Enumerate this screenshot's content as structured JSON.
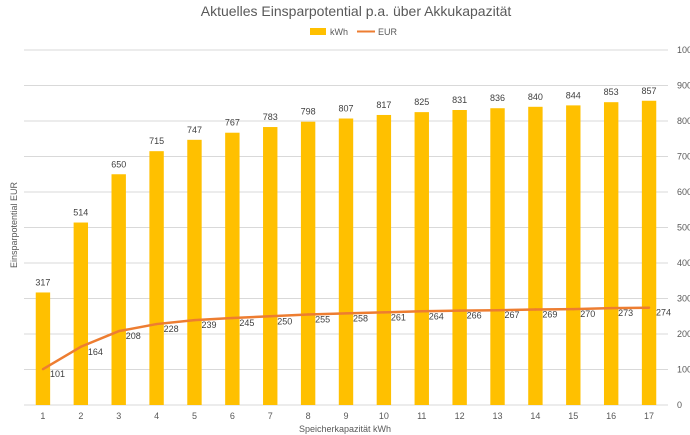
{
  "chart_data": {
    "type": "bar",
    "title": "Aktuelles Einsparpotential p.a. über Akkukapazität",
    "xlabel": "Speicherkapazität kWh",
    "ylabel": "Einsparpotential EUR",
    "categories": [
      "1",
      "2",
      "3",
      "4",
      "5",
      "6",
      "7",
      "8",
      "9",
      "10",
      "11",
      "12",
      "13",
      "14",
      "15",
      "16",
      "17"
    ],
    "series": [
      {
        "name": "kWh",
        "type": "bar",
        "color": "#FFC000",
        "axis": "left",
        "values": [
          317,
          514,
          650,
          715,
          747,
          767,
          783,
          798,
          807,
          817,
          825,
          831,
          836,
          840,
          844,
          853,
          857
        ]
      },
      {
        "name": "EUR",
        "type": "line",
        "color": "#ED7D31",
        "axis": "right",
        "values": [
          101,
          164,
          208,
          228,
          239,
          245,
          250,
          255,
          258,
          261,
          264,
          266,
          267,
          269,
          270,
          273,
          274
        ]
      }
    ],
    "ylim": [
      0,
      1000
    ],
    "y_ticks": [
      "0",
      "100",
      "200",
      "300",
      "400",
      "500",
      "600",
      "700",
      "800",
      "900",
      "1000"
    ],
    "y2lim": [
      0,
      100
    ],
    "y2_ticks": [
      "0",
      "10",
      "20",
      "30",
      "40",
      "50",
      "60",
      "70",
      "80",
      "90",
      "100"
    ],
    "grid": true,
    "legend": "top"
  }
}
